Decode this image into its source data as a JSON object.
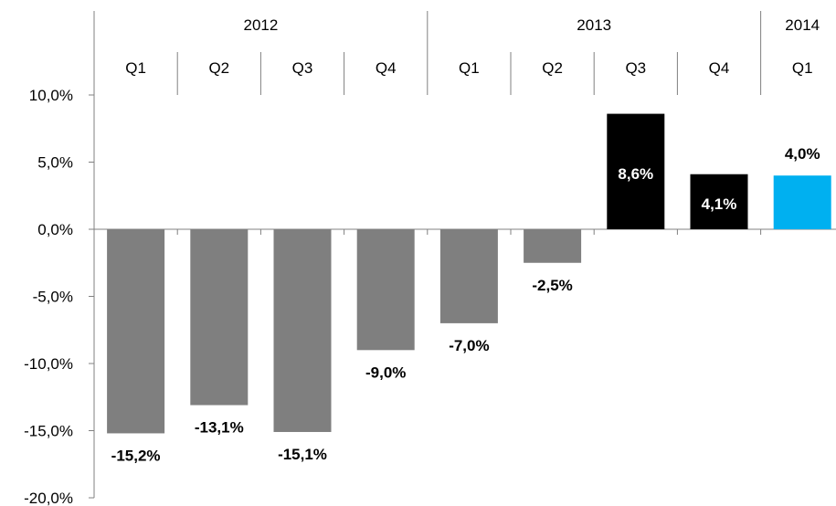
{
  "chart_data": {
    "type": "bar",
    "year_groups": [
      {
        "label": "2012",
        "quarters": [
          "Q1",
          "Q2",
          "Q3",
          "Q4"
        ]
      },
      {
        "label": "2013",
        "quarters": [
          "Q1",
          "Q2",
          "Q3",
          "Q4"
        ]
      },
      {
        "label": "2014",
        "quarters": [
          "Q1"
        ]
      }
    ],
    "categories": [
      "Q1",
      "Q2",
      "Q3",
      "Q4",
      "Q1",
      "Q2",
      "Q3",
      "Q4",
      "Q1"
    ],
    "values": [
      -15.2,
      -13.1,
      -15.1,
      -9.0,
      -7.0,
      -2.5,
      8.6,
      4.1,
      4.0
    ],
    "data_labels": [
      "-15,2%",
      "-13,1%",
      "-15,1%",
      "-9,0%",
      "-7,0%",
      "-2,5%",
      "8,6%",
      "4,1%",
      "4,0%"
    ],
    "bar_colors": [
      "#7f7f7f",
      "#7f7f7f",
      "#7f7f7f",
      "#7f7f7f",
      "#7f7f7f",
      "#7f7f7f",
      "#000000",
      "#000000",
      "#00b0f0"
    ],
    "y_ticks": [
      10,
      5,
      0,
      -5,
      -10,
      -15,
      -20
    ],
    "y_tick_labels": [
      "10,0%",
      "5,0%",
      "0,0%",
      "-5,0%",
      "-10,0%",
      "-15,0%",
      "-20,0%"
    ],
    "ylim": [
      -20,
      10
    ],
    "grid": false,
    "legend": "none",
    "title": "",
    "xlabel": "",
    "ylabel": ""
  }
}
